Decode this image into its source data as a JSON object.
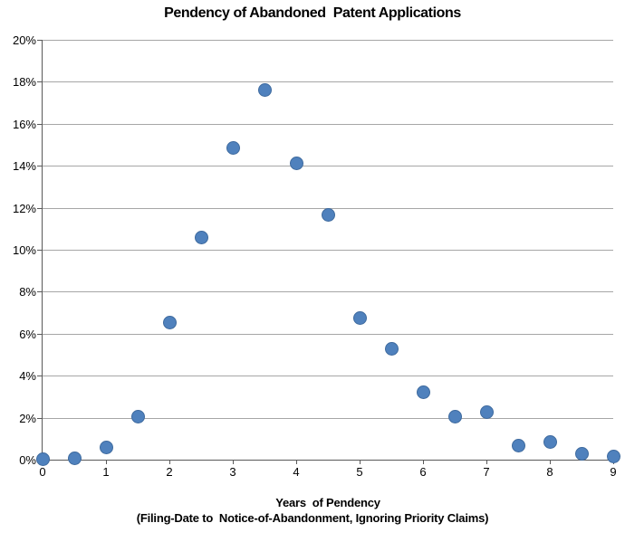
{
  "chart_data": {
    "type": "scatter",
    "title": "Pendency of Abandoned  Patent Applications",
    "xlabel": "Years  of Pendency",
    "xlabel_line2": "(Filing-Date to  Notice-of-Abandonment, Ignoring Priority Claims)",
    "ylabel": "",
    "xlim": [
      0,
      9
    ],
    "ylim": [
      0,
      20
    ],
    "x_tick_labels": [
      "0",
      "1",
      "2",
      "3",
      "4",
      "5",
      "6",
      "7",
      "8",
      "9"
    ],
    "y_tick_labels": [
      "0%",
      "2%",
      "4%",
      "6%",
      "8%",
      "10%",
      "12%",
      "14%",
      "16%",
      "18%",
      "20%"
    ],
    "y_tick_step": 2,
    "x_tick_step": 1,
    "grid": true,
    "legend": "none",
    "series": [
      {
        "marker": "circle",
        "color": "#4F81BD",
        "points": [
          {
            "x": 0,
            "y": 0.02
          },
          {
            "x": 0.5,
            "y": 0.05
          },
          {
            "x": 1,
            "y": 0.6
          },
          {
            "x": 1.5,
            "y": 2.05
          },
          {
            "x": 2,
            "y": 6.55
          },
          {
            "x": 2.5,
            "y": 10.6
          },
          {
            "x": 3,
            "y": 14.85
          },
          {
            "x": 3.5,
            "y": 17.6
          },
          {
            "x": 4,
            "y": 14.1
          },
          {
            "x": 4.5,
            "y": 11.65
          },
          {
            "x": 5,
            "y": 6.75
          },
          {
            "x": 5.5,
            "y": 5.3
          },
          {
            "x": 6,
            "y": 3.2
          },
          {
            "x": 6.5,
            "y": 2.05
          },
          {
            "x": 7,
            "y": 2.25
          },
          {
            "x": 7.5,
            "y": 0.65
          },
          {
            "x": 8,
            "y": 0.85
          },
          {
            "x": 8.5,
            "y": 0.3
          },
          {
            "x": 9,
            "y": 0.15
          }
        ]
      }
    ]
  },
  "colors": {
    "marker_fill": "#4F81BD",
    "marker_edge": "#3E6A9E",
    "gridline": "#A6A6A6",
    "axis": "#595959",
    "text": "#000000",
    "background": "#FFFFFF"
  }
}
